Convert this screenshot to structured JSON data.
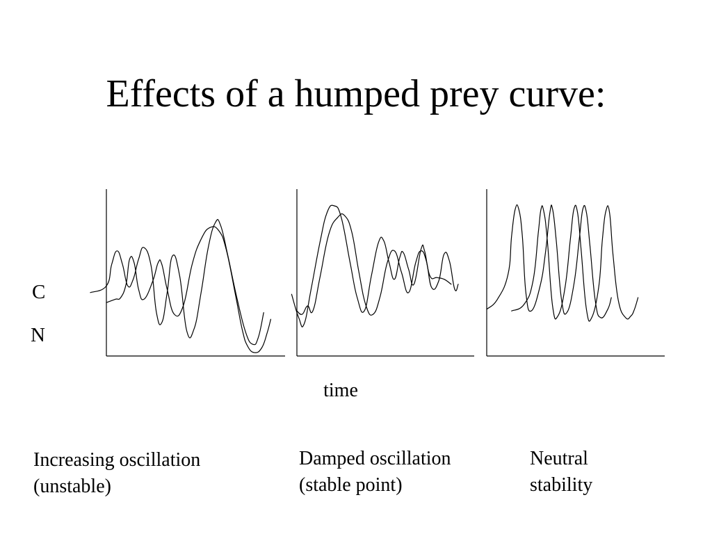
{
  "title": "Effects of a humped prey curve:",
  "y_series_labels": {
    "c": "C",
    "n": "N"
  },
  "xlabel": "time",
  "captions": [
    {
      "line1": "Increasing oscillation",
      "line2": "(unstable)"
    },
    {
      "line1": "Damped oscillation",
      "line2": "(stable point)"
    },
    {
      "line1": "Neutral",
      "line2": "stability"
    }
  ],
  "colors": {
    "ink": "#000000",
    "background": "#ffffff"
  },
  "chart_data": [
    {
      "type": "line",
      "caption": "Increasing oscillation (unstable)",
      "xlabel": "time",
      "ylabel": "",
      "xlim": [
        0,
        1
      ],
      "ylim": [
        0,
        1
      ],
      "grid": false,
      "series": [
        {
          "points": [
            [
              -0.09,
              0.38
            ],
            [
              0,
              0.42
            ],
            [
              0.03,
              0.55
            ],
            [
              0.06,
              0.63
            ],
            [
              0.09,
              0.55
            ],
            [
              0.12,
              0.42
            ],
            [
              0.15,
              0.46
            ],
            [
              0.18,
              0.58
            ],
            [
              0.21,
              0.65
            ],
            [
              0.25,
              0.54
            ],
            [
              0.28,
              0.26
            ],
            [
              0.31,
              0.2
            ],
            [
              0.34,
              0.38
            ],
            [
              0.37,
              0.6
            ],
            [
              0.41,
              0.48
            ],
            [
              0.45,
              0.15
            ],
            [
              0.49,
              0.16
            ],
            [
              0.53,
              0.38
            ],
            [
              0.57,
              0.65
            ],
            [
              0.61,
              0.8
            ],
            [
              0.64,
              0.78
            ],
            [
              0.68,
              0.6
            ],
            [
              0.73,
              0.35
            ],
            [
              0.78,
              0.14
            ],
            [
              0.82,
              0.07
            ],
            [
              0.85,
              0.11
            ],
            [
              0.88,
              0.26
            ]
          ]
        },
        {
          "points": [
            [
              0,
              0.32
            ],
            [
              0.05,
              0.34
            ],
            [
              0.08,
              0.35
            ],
            [
              0.11,
              0.43
            ],
            [
              0.13,
              0.58
            ],
            [
              0.155,
              0.56
            ],
            [
              0.18,
              0.4
            ],
            [
              0.21,
              0.34
            ],
            [
              0.26,
              0.45
            ],
            [
              0.29,
              0.56
            ],
            [
              0.31,
              0.55
            ],
            [
              0.34,
              0.4
            ],
            [
              0.38,
              0.25
            ],
            [
              0.43,
              0.3
            ],
            [
              0.48,
              0.55
            ],
            [
              0.53,
              0.7
            ],
            [
              0.58,
              0.77
            ],
            [
              0.63,
              0.75
            ],
            [
              0.67,
              0.64
            ],
            [
              0.72,
              0.38
            ],
            [
              0.76,
              0.16
            ],
            [
              0.79,
              0.06
            ],
            [
              0.83,
              0.02
            ],
            [
              0.87,
              0.05
            ],
            [
              0.9,
              0.14
            ],
            [
              0.92,
              0.22
            ]
          ]
        }
      ]
    },
    {
      "type": "line",
      "caption": "Damped oscillation (stable point)",
      "xlabel": "time",
      "ylabel": "",
      "xlim": [
        0,
        1
      ],
      "ylim": [
        0,
        1
      ],
      "grid": false,
      "series": [
        {
          "points": [
            [
              -0.03,
              0.37
            ],
            [
              0.01,
              0.23
            ],
            [
              0.04,
              0.19
            ],
            [
              0.08,
              0.4
            ],
            [
              0.13,
              0.68
            ],
            [
              0.17,
              0.86
            ],
            [
              0.21,
              0.9
            ],
            [
              0.25,
              0.83
            ],
            [
              0.3,
              0.56
            ],
            [
              0.34,
              0.35
            ],
            [
              0.38,
              0.27
            ],
            [
              0.42,
              0.48
            ],
            [
              0.46,
              0.68
            ],
            [
              0.49,
              0.69
            ],
            [
              0.52,
              0.56
            ],
            [
              0.55,
              0.46
            ],
            [
              0.58,
              0.59
            ],
            [
              0.6,
              0.62
            ],
            [
              0.63,
              0.52
            ],
            [
              0.66,
              0.43
            ],
            [
              0.7,
              0.64
            ],
            [
              0.72,
              0.63
            ],
            [
              0.75,
              0.48
            ],
            [
              0.79,
              0.47
            ],
            [
              0.83,
              0.46
            ],
            [
              0.87,
              0.43
            ]
          ]
        },
        {
          "points": [
            [
              0,
              0.27
            ],
            [
              0.03,
              0.25
            ],
            [
              0.06,
              0.3
            ],
            [
              0.09,
              0.27
            ],
            [
              0.13,
              0.47
            ],
            [
              0.18,
              0.73
            ],
            [
              0.23,
              0.83
            ],
            [
              0.27,
              0.84
            ],
            [
              0.31,
              0.74
            ],
            [
              0.35,
              0.5
            ],
            [
              0.39,
              0.3
            ],
            [
              0.43,
              0.25
            ],
            [
              0.47,
              0.36
            ],
            [
              0.51,
              0.56
            ],
            [
              0.55,
              0.63
            ],
            [
              0.59,
              0.5
            ],
            [
              0.63,
              0.38
            ],
            [
              0.67,
              0.56
            ],
            [
              0.7,
              0.63
            ],
            [
              0.73,
              0.57
            ],
            [
              0.76,
              0.41
            ],
            [
              0.8,
              0.45
            ],
            [
              0.83,
              0.61
            ],
            [
              0.86,
              0.57
            ],
            [
              0.89,
              0.4
            ],
            [
              0.91,
              0.43
            ]
          ]
        }
      ]
    },
    {
      "type": "line",
      "caption": "Neutral stability",
      "xlabel": "time",
      "ylabel": "",
      "xlim": [
        0,
        1
      ],
      "ylim": [
        0,
        1
      ],
      "grid": false,
      "series": [
        {
          "points": [
            [
              0,
              0.28
            ],
            [
              0.06,
              0.34
            ],
            [
              0.12,
              0.49
            ],
            [
              0.14,
              0.72
            ],
            [
              0.16,
              0.88
            ],
            [
              0.18,
              0.88
            ],
            [
              0.2,
              0.72
            ],
            [
              0.22,
              0.38
            ],
            [
              0.25,
              0.27
            ],
            [
              0.3,
              0.42
            ],
            [
              0.33,
              0.62
            ],
            [
              0.355,
              0.86
            ],
            [
              0.37,
              0.88
            ],
            [
              0.39,
              0.7
            ],
            [
              0.42,
              0.34
            ],
            [
              0.45,
              0.26
            ],
            [
              0.49,
              0.43
            ],
            [
              0.52,
              0.7
            ],
            [
              0.54,
              0.88
            ],
            [
              0.56,
              0.86
            ],
            [
              0.58,
              0.66
            ],
            [
              0.61,
              0.33
            ],
            [
              0.64,
              0.23
            ],
            [
              0.68,
              0.28
            ],
            [
              0.7,
              0.35
            ]
          ]
        },
        {
          "points": [
            [
              0.14,
              0.27
            ],
            [
              0.21,
              0.31
            ],
            [
              0.26,
              0.45
            ],
            [
              0.29,
              0.74
            ],
            [
              0.305,
              0.88
            ],
            [
              0.32,
              0.87
            ],
            [
              0.34,
              0.7
            ],
            [
              0.37,
              0.3
            ],
            [
              0.4,
              0.24
            ],
            [
              0.44,
              0.41
            ],
            [
              0.47,
              0.7
            ],
            [
              0.49,
              0.88
            ],
            [
              0.51,
              0.86
            ],
            [
              0.53,
              0.64
            ],
            [
              0.56,
              0.28
            ],
            [
              0.59,
              0.23
            ],
            [
              0.63,
              0.42
            ],
            [
              0.65,
              0.7
            ],
            [
              0.67,
              0.87
            ],
            [
              0.69,
              0.86
            ],
            [
              0.71,
              0.6
            ],
            [
              0.74,
              0.33
            ],
            [
              0.78,
              0.23
            ],
            [
              0.81,
              0.24
            ],
            [
              0.83,
              0.28
            ],
            [
              0.85,
              0.35
            ]
          ]
        }
      ]
    }
  ]
}
